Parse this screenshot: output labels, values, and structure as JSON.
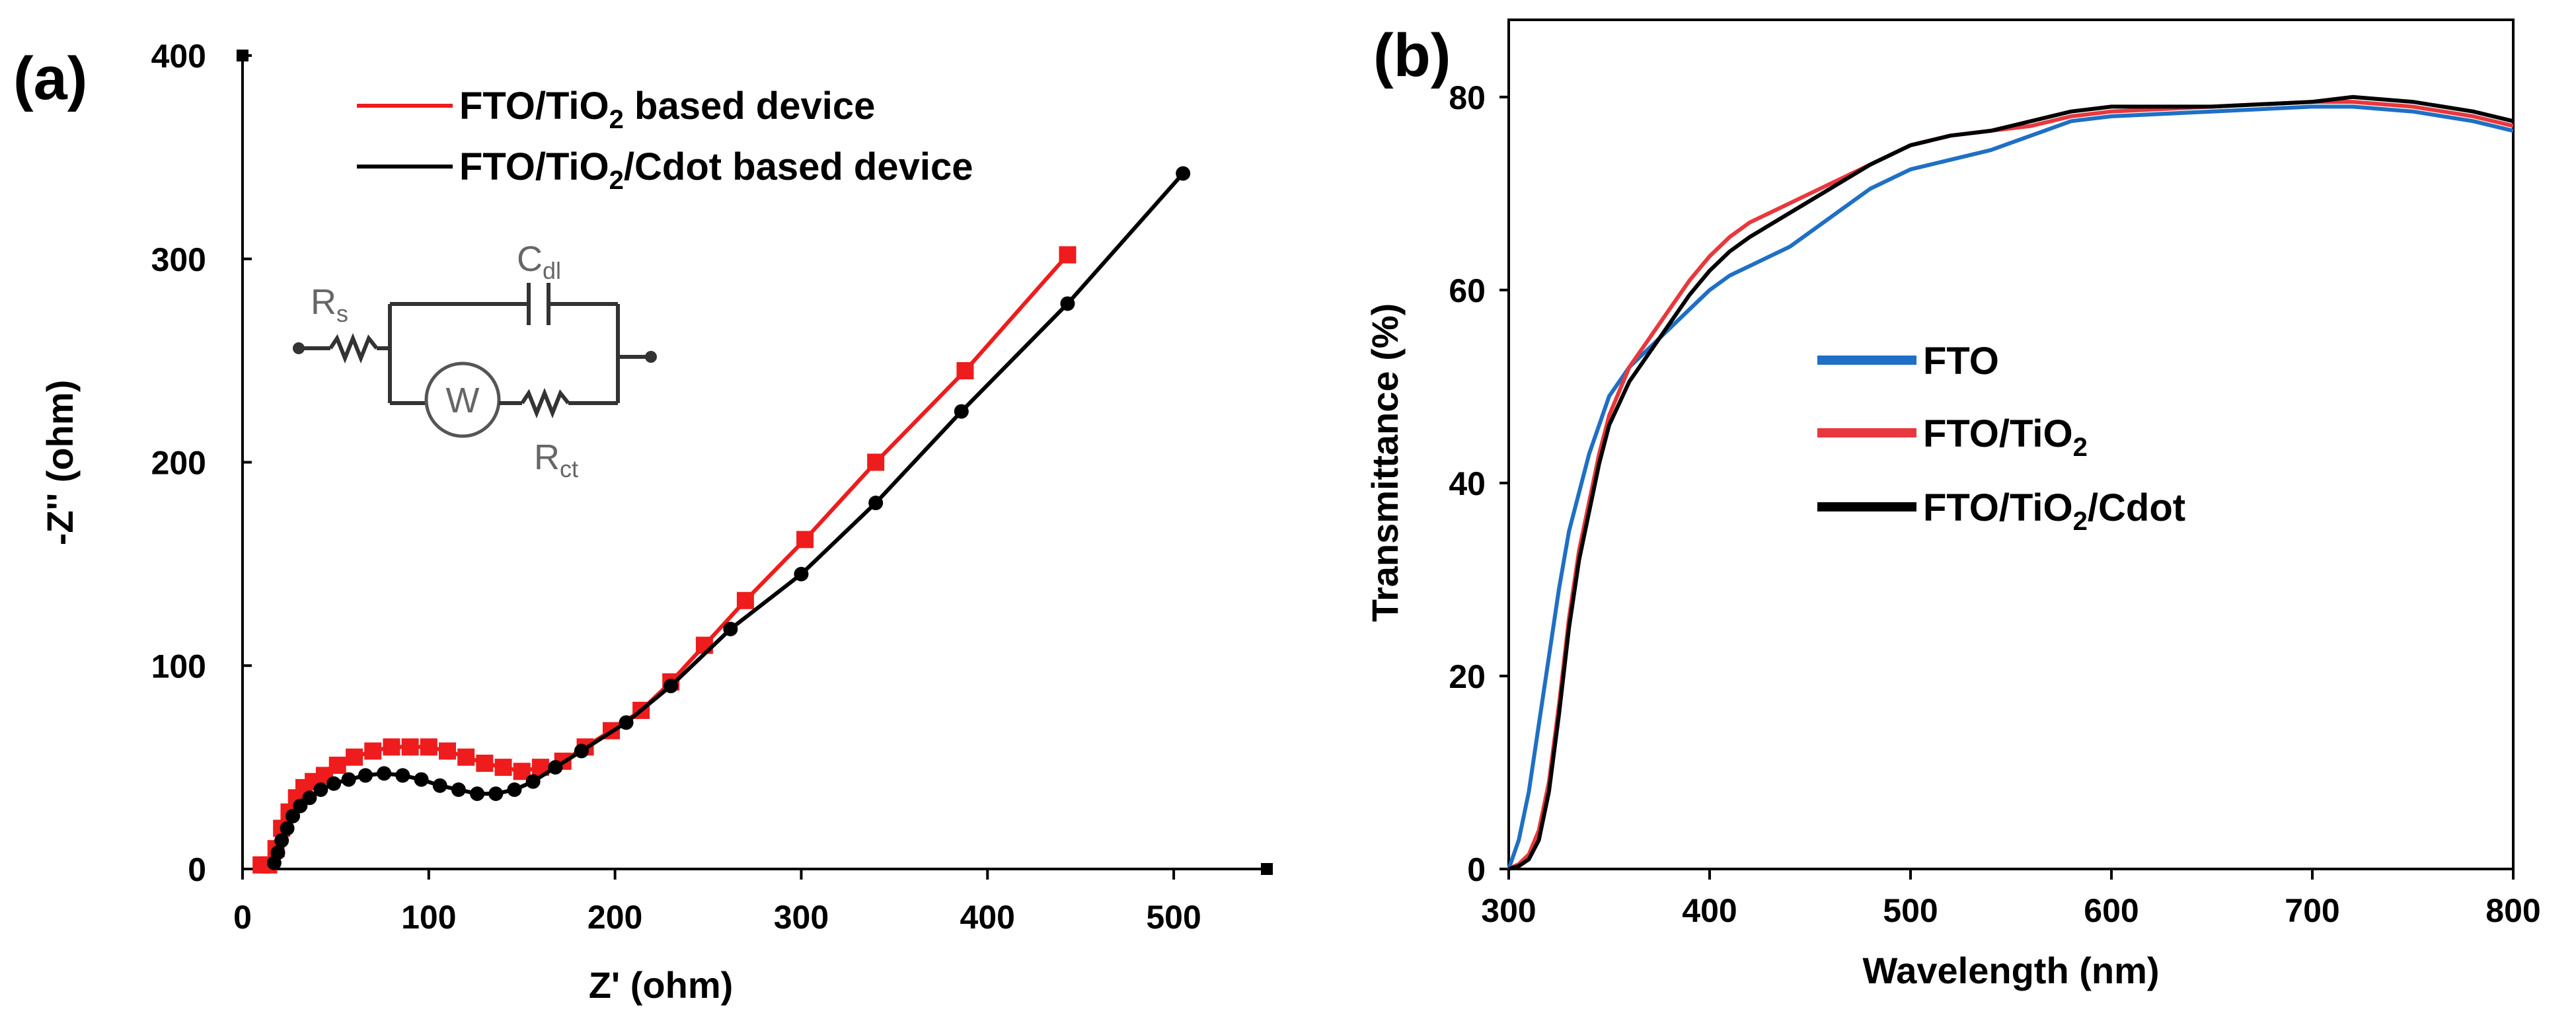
{
  "chart_data": [
    {
      "id": "a",
      "panel_label": "(a)",
      "type": "scatter",
      "title": "",
      "xlabel": "Z' (ohm)",
      "ylabel": "-Z'' (ohm)",
      "xlim": [
        0,
        550
      ],
      "ylim": [
        0,
        400
      ],
      "xticks": [
        "0",
        "100",
        "200",
        "300",
        "400",
        "500"
      ],
      "yticks": [
        "0",
        "100",
        "200",
        "300",
        "400"
      ],
      "legend_position": "top-left",
      "series": [
        {
          "name": "FTO/TiO",
          "name_sub": "2",
          "name_tail": " based device",
          "color": "#ee1c1c",
          "marker": "square",
          "x": [
            10,
            14,
            18,
            21,
            25,
            29,
            33,
            38,
            44,
            51,
            60,
            70,
            80,
            90,
            100,
            110,
            120,
            130,
            140,
            150,
            160,
            172,
            184,
            198,
            214,
            230,
            248,
            270,
            302,
            340,
            388,
            443
          ],
          "y": [
            2,
            2,
            10,
            20,
            28,
            35,
            40,
            43,
            46,
            51,
            55,
            58,
            60,
            60,
            60,
            58,
            55,
            52,
            50,
            48,
            50,
            53,
            60,
            68,
            78,
            92,
            110,
            132,
            162,
            200,
            245,
            302
          ]
        },
        {
          "name": "FTO/TiO",
          "name_sub": "2",
          "name_tail": "/Cdot based device",
          "color": "#000000",
          "marker": "circle",
          "x": [
            17,
            19,
            21,
            24,
            27,
            31,
            36,
            42,
            49,
            57,
            66,
            76,
            86,
            96,
            106,
            116,
            126,
            136,
            146,
            156,
            168,
            182,
            206,
            230,
            262,
            300,
            340,
            386,
            443,
            505
          ],
          "y": [
            3,
            8,
            14,
            20,
            26,
            31,
            35,
            39,
            42,
            44,
            46,
            47,
            46,
            44,
            41,
            39,
            37,
            37,
            39,
            43,
            50,
            58,
            72,
            90,
            118,
            145,
            180,
            225,
            278,
            342
          ]
        }
      ],
      "inset": {
        "description": "equivalent circuit",
        "rs_label": "R",
        "rs_sub": "s",
        "cdl_label": "C",
        "cdl_sub": "dl",
        "w_label": "W",
        "rct_label": "R",
        "rct_sub": "ct"
      }
    },
    {
      "id": "b",
      "panel_label": "(b)",
      "type": "line",
      "title": "",
      "xlabel": "Wavelength (nm)",
      "ylabel": "Transmittance (%)",
      "xlim": [
        300,
        800
      ],
      "ylim": [
        0,
        88
      ],
      "xticks": [
        "300",
        "400",
        "500",
        "600",
        "700",
        "800"
      ],
      "yticks": [
        "0",
        "20",
        "40",
        "60",
        "80"
      ],
      "legend_position": "center",
      "series": [
        {
          "name": "FTO",
          "name_sub": "",
          "name_tail": "",
          "color": "#1f6fc4",
          "x": [
            300,
            305,
            310,
            315,
            320,
            325,
            330,
            335,
            340,
            345,
            350,
            360,
            370,
            380,
            390,
            400,
            410,
            420,
            440,
            460,
            480,
            500,
            520,
            540,
            560,
            580,
            600,
            650,
            700,
            720,
            750,
            780,
            800
          ],
          "y": [
            0,
            3,
            8,
            15,
            22,
            29,
            35,
            39,
            43,
            46,
            49,
            52,
            54,
            56,
            58,
            60,
            61.5,
            62.5,
            64.5,
            67.5,
            70.5,
            72.5,
            73.5,
            74.5,
            76,
            77.5,
            78,
            78.5,
            79,
            79,
            78.5,
            77.5,
            76.5
          ]
        },
        {
          "name": "FTO/TiO",
          "name_sub": "2",
          "name_tail": "",
          "color": "#e8383d",
          "x": [
            300,
            305,
            310,
            315,
            320,
            325,
            330,
            335,
            340,
            345,
            350,
            360,
            370,
            380,
            390,
            400,
            410,
            420,
            440,
            460,
            480,
            500,
            520,
            540,
            560,
            580,
            600,
            650,
            700,
            720,
            750,
            780,
            800
          ],
          "y": [
            0,
            0.5,
            1.5,
            4,
            9,
            17,
            26,
            33,
            38,
            43,
            47,
            52,
            55,
            58,
            61,
            63.5,
            65.5,
            67,
            69,
            71,
            73,
            75,
            76,
            76.5,
            77,
            78,
            78.5,
            79,
            79.5,
            79.5,
            79,
            78,
            77
          ]
        },
        {
          "name": "FTO/TiO",
          "name_sub": "2",
          "name_tail": "/Cdot",
          "color": "#000000",
          "x": [
            300,
            305,
            310,
            315,
            320,
            325,
            330,
            335,
            340,
            345,
            350,
            360,
            370,
            380,
            390,
            400,
            410,
            420,
            440,
            460,
            480,
            500,
            520,
            540,
            560,
            580,
            600,
            650,
            700,
            720,
            750,
            780,
            800
          ],
          "y": [
            0,
            0.3,
            1,
            3,
            8,
            16,
            25,
            32,
            37,
            42,
            46,
            50.5,
            53.5,
            56.5,
            59.5,
            62,
            64,
            65.5,
            68,
            70.5,
            73,
            75,
            76,
            76.5,
            77.5,
            78.5,
            79,
            79,
            79.5,
            80,
            79.5,
            78.5,
            77.5
          ]
        }
      ]
    }
  ]
}
